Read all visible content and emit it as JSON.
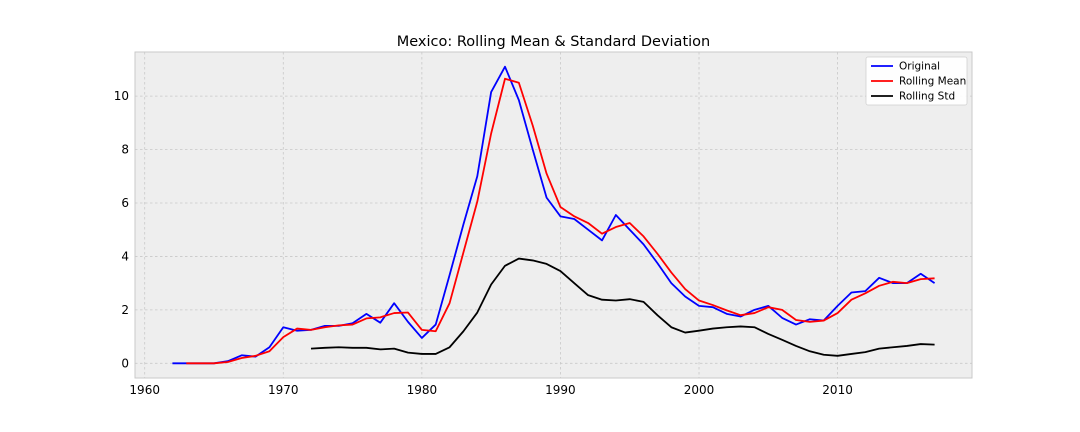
{
  "chart_data": {
    "type": "line",
    "title": "Mexico: Rolling Mean & Standard Deviation",
    "xlabel": "",
    "ylabel": "",
    "xlim": [
      1959.3,
      2019.7
    ],
    "ylim": [
      -0.55,
      11.65
    ],
    "xticks": [
      1960,
      1970,
      1980,
      1990,
      2000,
      2010
    ],
    "yticks": [
      0,
      2,
      4,
      6,
      8,
      10
    ],
    "grid": true,
    "legend": "top-right",
    "series": [
      {
        "name": "Original",
        "color": "#0000ff",
        "x": [
          1962,
          1963,
          1964,
          1965,
          1966,
          1967,
          1968,
          1969,
          1970,
          1971,
          1972,
          1973,
          1974,
          1975,
          1976,
          1977,
          1978,
          1979,
          1980,
          1981,
          1982,
          1983,
          1984,
          1985,
          1986,
          1987,
          1988,
          1989,
          1990,
          1991,
          1992,
          1993,
          1994,
          1995,
          1996,
          1997,
          1998,
          1999,
          2000,
          2001,
          2002,
          2003,
          2004,
          2005,
          2006,
          2007,
          2008,
          2009,
          2010,
          2011,
          2012,
          2013,
          2014,
          2015,
          2016,
          2017
        ],
        "y": [
          0.0,
          0.0,
          0.0,
          0.0,
          0.08,
          0.3,
          0.25,
          0.6,
          1.35,
          1.22,
          1.25,
          1.4,
          1.4,
          1.5,
          1.85,
          1.52,
          2.25,
          1.55,
          0.95,
          1.45,
          3.3,
          5.2,
          7.0,
          10.15,
          11.1,
          9.85,
          8.0,
          6.2,
          5.5,
          5.4,
          5.0,
          4.6,
          5.55,
          5.0,
          4.45,
          3.75,
          3.0,
          2.5,
          2.15,
          2.1,
          1.85,
          1.75,
          2.0,
          2.15,
          1.7,
          1.45,
          1.65,
          1.6,
          2.15,
          2.65,
          2.7,
          3.2,
          3.0,
          3.0,
          3.35,
          3.0
        ]
      },
      {
        "name": "Rolling Mean",
        "color": "#ff0000",
        "x": [
          1963,
          1964,
          1965,
          1966,
          1967,
          1968,
          1969,
          1970,
          1971,
          1972,
          1973,
          1974,
          1975,
          1976,
          1977,
          1978,
          1979,
          1980,
          1981,
          1982,
          1983,
          1984,
          1985,
          1986,
          1987,
          1988,
          1989,
          1990,
          1991,
          1992,
          1993,
          1994,
          1995,
          1996,
          1997,
          1998,
          1999,
          2000,
          2001,
          2002,
          2003,
          2004,
          2005,
          2006,
          2007,
          2008,
          2009,
          2010,
          2011,
          2012,
          2013,
          2014,
          2015,
          2016,
          2017
        ],
        "y": [
          0.0,
          0.0,
          0.0,
          0.05,
          0.2,
          0.28,
          0.45,
          0.98,
          1.3,
          1.25,
          1.35,
          1.42,
          1.45,
          1.68,
          1.72,
          1.88,
          1.9,
          1.25,
          1.2,
          2.25,
          4.15,
          6.05,
          8.6,
          10.65,
          10.5,
          8.9,
          7.1,
          5.85,
          5.5,
          5.25,
          4.85,
          5.1,
          5.25,
          4.75,
          4.1,
          3.4,
          2.78,
          2.35,
          2.18,
          1.98,
          1.8,
          1.88,
          2.1,
          2.0,
          1.62,
          1.55,
          1.6,
          1.88,
          2.38,
          2.62,
          2.9,
          3.05,
          3.0,
          3.15,
          3.18
        ]
      },
      {
        "name": "Rolling Std",
        "color": "#000000",
        "x": [
          1972,
          1973,
          1974,
          1975,
          1976,
          1977,
          1978,
          1979,
          1980,
          1981,
          1982,
          1983,
          1984,
          1985,
          1986,
          1987,
          1988,
          1989,
          1990,
          1991,
          1992,
          1993,
          1994,
          1995,
          1996,
          1997,
          1998,
          1999,
          2000,
          2001,
          2002,
          2003,
          2004,
          2005,
          2006,
          2007,
          2008,
          2009,
          2010,
          2011,
          2012,
          2013,
          2014,
          2015,
          2016,
          2017
        ],
        "y": [
          0.55,
          0.58,
          0.6,
          0.58,
          0.58,
          0.52,
          0.55,
          0.4,
          0.35,
          0.35,
          0.6,
          1.2,
          1.9,
          2.95,
          3.65,
          3.92,
          3.85,
          3.72,
          3.45,
          3.0,
          2.55,
          2.38,
          2.35,
          2.4,
          2.3,
          1.8,
          1.35,
          1.15,
          1.22,
          1.3,
          1.35,
          1.38,
          1.35,
          1.1,
          0.88,
          0.65,
          0.45,
          0.32,
          0.28,
          0.35,
          0.42,
          0.55,
          0.6,
          0.65,
          0.72,
          0.7
        ]
      }
    ]
  }
}
